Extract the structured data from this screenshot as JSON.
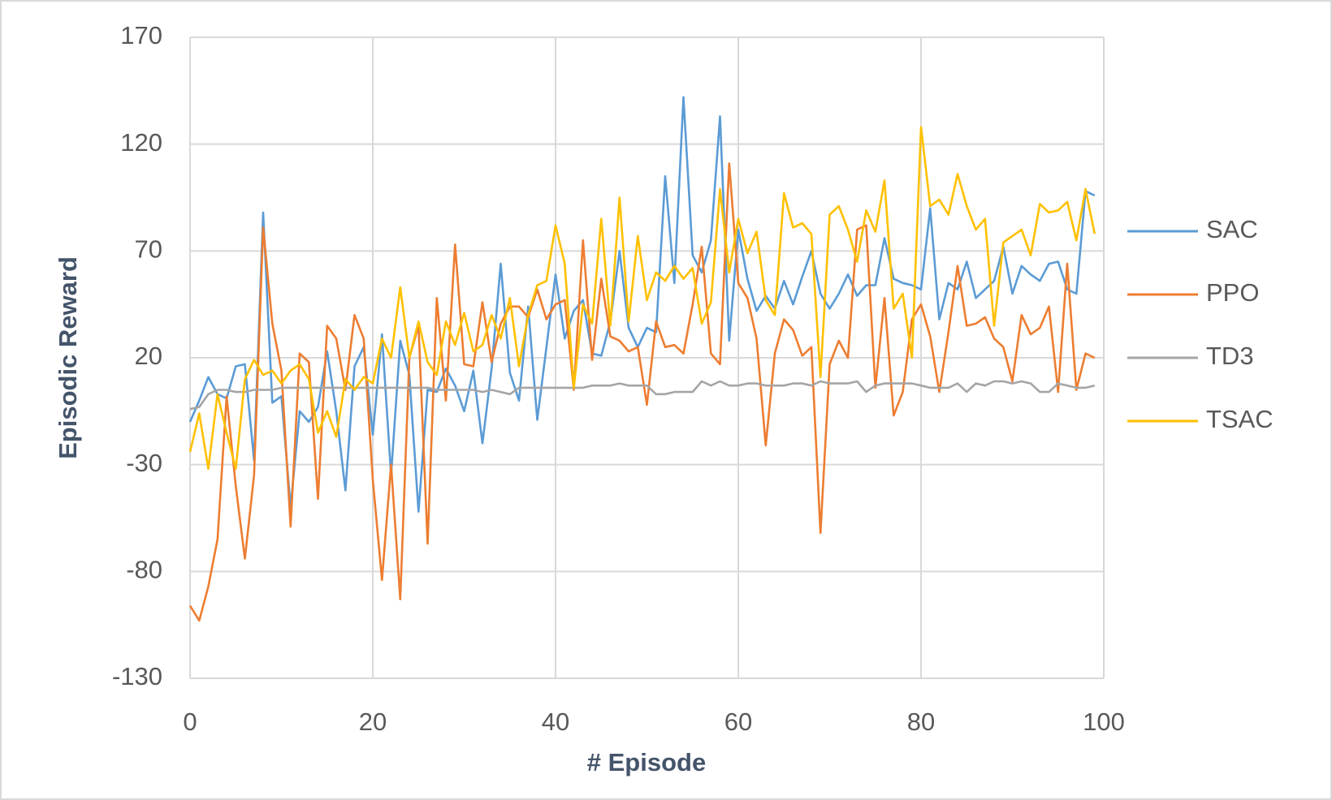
{
  "chart_data": {
    "type": "line",
    "x_label": "# Episode",
    "y_label": "Episodic Reward",
    "x": [
      0,
      1,
      2,
      3,
      4,
      5,
      6,
      7,
      8,
      9,
      10,
      11,
      12,
      13,
      14,
      15,
      16,
      17,
      18,
      19,
      20,
      21,
      22,
      23,
      24,
      25,
      26,
      27,
      28,
      29,
      30,
      31,
      32,
      33,
      34,
      35,
      36,
      37,
      38,
      39,
      40,
      41,
      42,
      43,
      44,
      45,
      46,
      47,
      48,
      49,
      50,
      51,
      52,
      53,
      54,
      55,
      56,
      57,
      58,
      59,
      60,
      61,
      62,
      63,
      64,
      65,
      66,
      67,
      68,
      69,
      70,
      71,
      72,
      73,
      74,
      75,
      76,
      77,
      78,
      79,
      80,
      81,
      82,
      83,
      84,
      85,
      86,
      87,
      88,
      89,
      90,
      91,
      92,
      93,
      94,
      95,
      96,
      97,
      98,
      99
    ],
    "xlim": [
      0,
      100
    ],
    "xticks": [
      0,
      20,
      40,
      60,
      80,
      100
    ],
    "ylim": [
      -130,
      170
    ],
    "yticks": [
      -130,
      -80,
      -30,
      20,
      70,
      120,
      170
    ],
    "grid": true,
    "legend": "right",
    "series": [
      {
        "name": "SAC",
        "color": "#5b9bd5",
        "values": [
          -10,
          0,
          11,
          3,
          1,
          16,
          17,
          -28,
          88,
          -1,
          2,
          -50,
          -5,
          -10,
          -3,
          23,
          -5,
          -42,
          16,
          25,
          -16,
          31,
          -35,
          28,
          12,
          -52,
          5,
          4,
          15,
          7,
          -5,
          14,
          -20,
          15,
          64,
          13,
          0,
          44,
          -9,
          25,
          59,
          29,
          42,
          47,
          22,
          21,
          37,
          70,
          34,
          25,
          34,
          32,
          105,
          55,
          142,
          68,
          60,
          75,
          133,
          28,
          80,
          57,
          42,
          49,
          43,
          56,
          45,
          58,
          70,
          50,
          43,
          50,
          59,
          49,
          54,
          54,
          76,
          57,
          55,
          54,
          52,
          90,
          38,
          55,
          52,
          65,
          48,
          52,
          56,
          72,
          50,
          63,
          59,
          56,
          64,
          65,
          52,
          50,
          98,
          96
        ]
      },
      {
        "name": "PPO",
        "color": "#ed7d31",
        "values": [
          -96,
          -103,
          -87,
          -65,
          2,
          -40,
          -74,
          -35,
          81,
          36,
          14,
          -59,
          22,
          18,
          -46,
          35,
          29,
          5,
          40,
          29,
          -37,
          -84,
          -30,
          -93,
          20,
          35,
          -67,
          48,
          0,
          73,
          17,
          16,
          46,
          18,
          36,
          44,
          44,
          39,
          52,
          38,
          45,
          47,
          5,
          75,
          19,
          57,
          30,
          28,
          23,
          25,
          -2,
          37,
          25,
          26,
          22,
          45,
          72,
          22,
          17,
          111,
          55,
          48,
          29,
          -21,
          22,
          38,
          33,
          21,
          25,
          -62,
          17,
          28,
          20,
          80,
          82,
          6,
          48,
          -7,
          4,
          38,
          45,
          30,
          4,
          32,
          63,
          35,
          36,
          39,
          29,
          25,
          9,
          40,
          31,
          34,
          44,
          4,
          64,
          5,
          22,
          20
        ]
      },
      {
        "name": "TD3",
        "color": "#a5a5a5",
        "values": [
          -4,
          -3,
          3,
          5,
          5,
          4,
          4,
          5,
          5,
          5,
          6,
          6,
          6,
          6,
          6,
          6,
          6,
          6,
          6,
          6,
          6,
          6,
          6,
          6,
          6,
          6,
          6,
          5,
          5,
          5,
          5,
          5,
          4,
          5,
          4,
          3,
          6,
          6,
          6,
          6,
          6,
          6,
          6,
          6,
          7,
          7,
          7,
          8,
          7,
          7,
          7,
          3,
          3,
          4,
          4,
          4,
          9,
          7,
          9,
          7,
          7,
          8,
          8,
          7,
          7,
          7,
          8,
          8,
          7,
          9,
          8,
          8,
          8,
          9,
          4,
          7,
          8,
          8,
          8,
          8,
          7,
          6,
          6,
          6,
          8,
          4,
          8,
          7,
          9,
          9,
          8,
          9,
          8,
          4,
          4,
          8,
          7,
          6,
          6,
          7
        ]
      },
      {
        "name": "TSAC",
        "color": "#ffc000",
        "values": [
          -24,
          -6,
          -32,
          3,
          -15,
          -32,
          10,
          19,
          12,
          14,
          8,
          14,
          17,
          10,
          -15,
          -5,
          -17,
          10,
          5,
          11,
          8,
          29,
          20,
          53,
          20,
          37,
          18,
          12,
          37,
          26,
          41,
          23,
          26,
          40,
          29,
          48,
          16,
          40,
          54,
          56,
          82,
          64,
          6,
          45,
          36,
          85,
          35,
          95,
          37,
          77,
          47,
          60,
          56,
          63,
          57,
          62,
          36,
          46,
          99,
          60,
          85,
          69,
          79,
          47,
          40,
          97,
          81,
          83,
          78,
          11,
          87,
          91,
          80,
          65,
          89,
          79,
          103,
          43,
          50,
          20,
          128,
          91,
          94,
          87,
          106,
          91,
          80,
          85,
          35,
          74,
          77,
          80,
          68,
          92,
          88,
          89,
          93,
          75,
          99,
          78
        ]
      }
    ]
  }
}
